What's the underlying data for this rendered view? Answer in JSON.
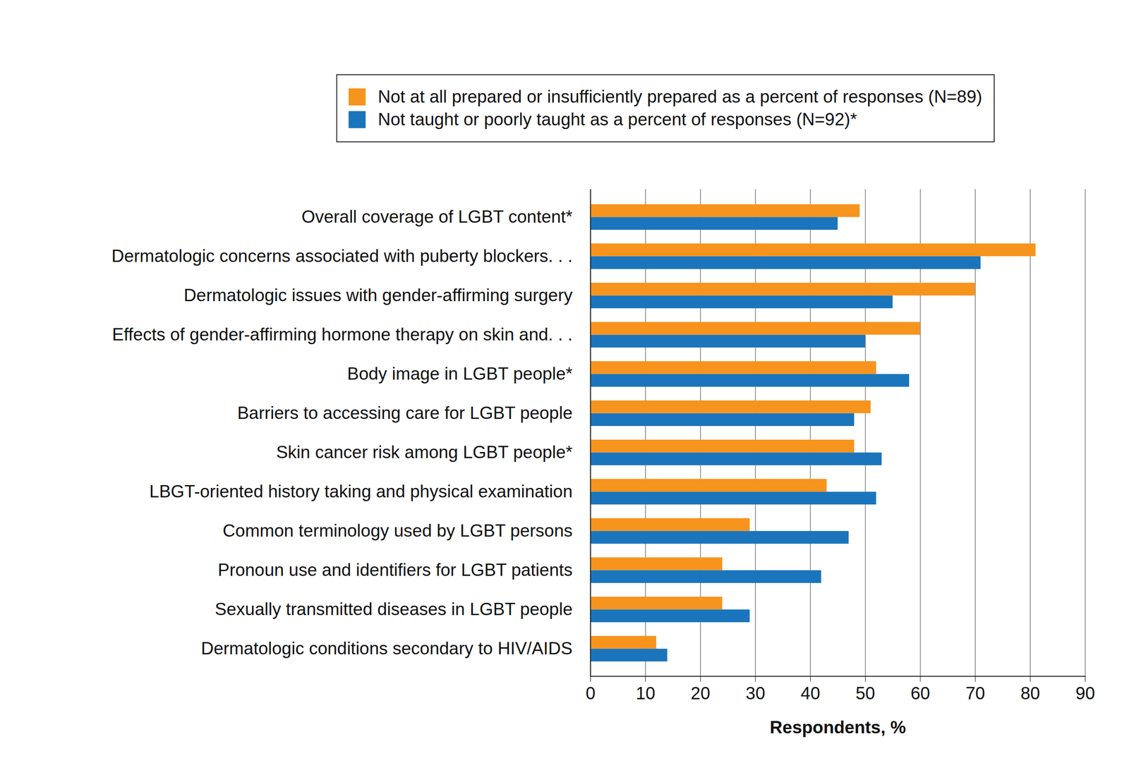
{
  "chart_data": {
    "type": "bar",
    "orientation": "horizontal",
    "categories": [
      "Overall coverage of LGBT content*",
      "Dermatologic concerns associated with puberty blockers. . .",
      "Dermatologic issues with gender-affirming surgery",
      "Effects of gender-affirming hormone therapy on skin and. . .",
      "Body image in LGBT people*",
      "Barriers to accessing care for LGBT people",
      "Skin cancer risk among LGBT people*",
      "LBGT-oriented history taking and physical examination",
      "Common terminology used by LGBT persons",
      "Pronoun use and identifiers for LGBT patients",
      "Sexually transmitted diseases in LGBT people",
      "Dermatologic conditions secondary to HIV/AIDS"
    ],
    "series": [
      {
        "name": "Not at all prepared or insufficiently prepared as a percent of responses (N=89)",
        "color": "#f7941d",
        "values": [
          49,
          81,
          70,
          60,
          52,
          51,
          48,
          43,
          29,
          24,
          24,
          12
        ]
      },
      {
        "name": "Not taught or poorly taught as a percent of responses (N=92)*",
        "color": "#1b75bc",
        "values": [
          45,
          71,
          55,
          50,
          58,
          48,
          53,
          52,
          47,
          42,
          29,
          14
        ]
      }
    ],
    "xlabel": "Respondents, %",
    "xlim": [
      0,
      90
    ],
    "xticks": [
      0,
      10,
      20,
      30,
      40,
      50,
      60,
      70,
      80,
      90
    ],
    "grid": true,
    "legend": "top"
  }
}
